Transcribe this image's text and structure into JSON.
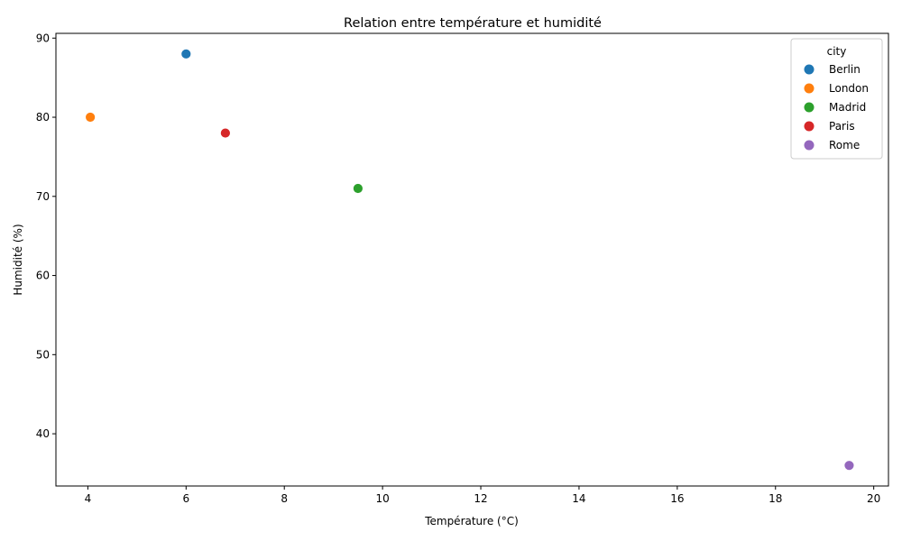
{
  "chart_data": {
    "type": "scatter",
    "title": "Relation entre température et humidité",
    "xlabel": "Température (°C)",
    "ylabel": "Humidité (%)",
    "xlim": [
      3.35,
      20.3
    ],
    "ylim": [
      33.4,
      90.6
    ],
    "xticks": [
      4,
      6,
      8,
      10,
      12,
      14,
      16,
      18,
      20
    ],
    "yticks": [
      40,
      50,
      60,
      70,
      80,
      90
    ],
    "grid": false,
    "legend": {
      "title": "city",
      "placement": "top-right"
    },
    "series": [
      {
        "name": "Berlin",
        "color": "#1f77b4",
        "points": [
          {
            "x": 6.0,
            "y": 88
          }
        ]
      },
      {
        "name": "London",
        "color": "#ff7f0e",
        "points": [
          {
            "x": 4.05,
            "y": 80
          }
        ]
      },
      {
        "name": "Madrid",
        "color": "#2ca02c",
        "points": [
          {
            "x": 9.5,
            "y": 71
          }
        ]
      },
      {
        "name": "Paris",
        "color": "#d62728",
        "points": [
          {
            "x": 6.8,
            "y": 78
          }
        ]
      },
      {
        "name": "Rome",
        "color": "#9467bd",
        "points": [
          {
            "x": 19.5,
            "y": 36
          }
        ]
      }
    ]
  }
}
